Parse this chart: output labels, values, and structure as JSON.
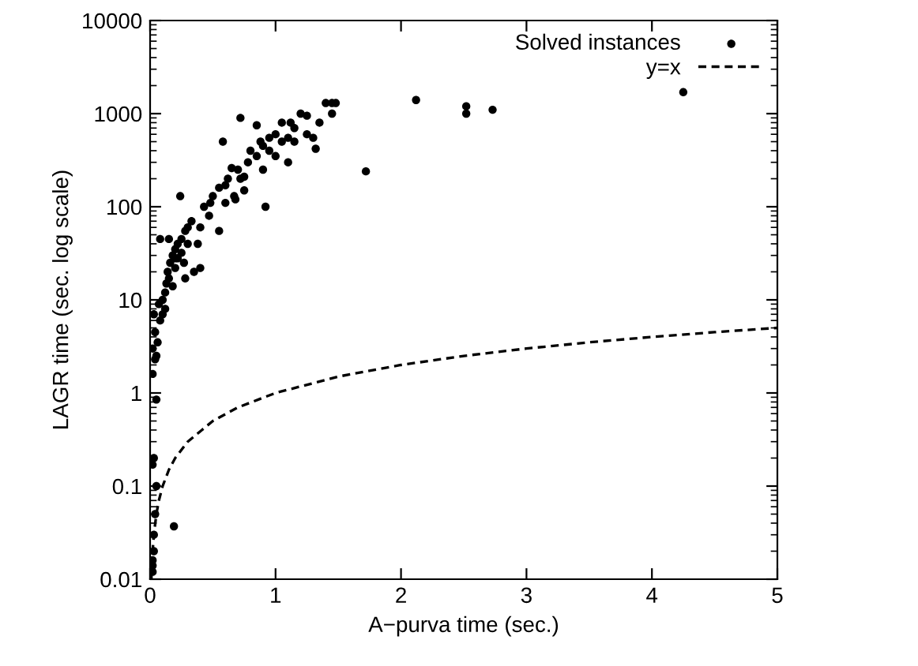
{
  "chart_data": {
    "type": "scatter",
    "xlabel": "A−purva time (sec.)",
    "ylabel": "LAGR time (sec. log scale)",
    "xlim": [
      0,
      5
    ],
    "xticks": [
      0,
      1,
      2,
      3,
      4,
      5
    ],
    "ylim": [
      0.01,
      10000
    ],
    "yticks": [
      0.01,
      0.1,
      1,
      10,
      100,
      1000,
      10000
    ],
    "log": "y",
    "grid": false,
    "legend": "top right",
    "series": [
      {
        "name": "Solved instances",
        "color": "#000000",
        "marker": "circle",
        "x": [
          0.02,
          0.02,
          0.02,
          0.03,
          0.03,
          0.04,
          0.05,
          0.02,
          0.03,
          0.19,
          0.05,
          0.02,
          0.02,
          0.04,
          0.05,
          0.06,
          0.04,
          0.08,
          0.1,
          0.03,
          0.07,
          0.1,
          0.12,
          0.12,
          0.13,
          0.15,
          0.14,
          0.16,
          0.18,
          0.2,
          0.18,
          0.2,
          0.22,
          0.25,
          0.28,
          0.3,
          0.22,
          0.25,
          0.27,
          0.3,
          0.33,
          0.08,
          0.15,
          0.2,
          0.24,
          0.28,
          0.35,
          0.38,
          0.4,
          0.43,
          0.48,
          0.5,
          0.55,
          0.6,
          0.62,
          0.6,
          0.65,
          0.67,
          0.7,
          0.72,
          0.75,
          0.78,
          0.8,
          0.85,
          0.88,
          0.9,
          0.9,
          0.95,
          0.95,
          1.0,
          1.0,
          1.05,
          1.1,
          1.1,
          1.12,
          1.15,
          1.2,
          1.25,
          1.25,
          1.3,
          1.32,
          1.35,
          1.4,
          1.45,
          1.45,
          1.48,
          0.72,
          0.58,
          0.92,
          0.85,
          0.55,
          0.47,
          0.4,
          0.75,
          0.68,
          1.05,
          1.15,
          2.12,
          2.52,
          2.52,
          2.73,
          4.25,
          1.72
        ],
        "values": [
          0.012,
          0.014,
          0.016,
          0.02,
          0.03,
          0.05,
          0.1,
          0.17,
          0.2,
          0.037,
          0.85,
          1.6,
          3,
          2.3,
          2.5,
          3.5,
          4.5,
          6,
          7,
          7,
          9,
          10,
          8,
          12,
          15,
          17,
          20,
          25,
          30,
          22,
          14,
          35,
          40,
          45,
          55,
          60,
          28,
          32,
          25,
          40,
          70,
          45,
          45,
          28,
          130,
          17,
          20,
          40,
          22,
          100,
          110,
          130,
          160,
          170,
          200,
          110,
          260,
          130,
          250,
          200,
          210,
          300,
          400,
          350,
          500,
          250,
          450,
          550,
          400,
          600,
          350,
          500,
          550,
          300,
          800,
          700,
          1000,
          950,
          600,
          550,
          420,
          800,
          1300,
          1300,
          1000,
          1300,
          900,
          500,
          100,
          750,
          55,
          80,
          60,
          150,
          120,
          800,
          500,
          1400,
          1200,
          1000,
          1100,
          1700,
          240
        ]
      },
      {
        "name": "y=x",
        "type": "line",
        "color": "#000000",
        "line_style": "dashed",
        "marker": "none",
        "x": [
          0.01,
          0.015,
          0.02,
          0.03,
          0.05,
          0.07,
          0.1,
          0.15,
          0.2,
          0.3,
          0.5,
          0.7,
          1,
          1.5,
          2,
          2.5,
          3,
          3.5,
          4,
          4.5,
          5
        ],
        "values": [
          0.01,
          0.015,
          0.02,
          0.03,
          0.05,
          0.07,
          0.1,
          0.15,
          0.2,
          0.3,
          0.5,
          0.7,
          1,
          1.5,
          2,
          2.5,
          3,
          3.5,
          4,
          4.5,
          5
        ]
      }
    ]
  }
}
